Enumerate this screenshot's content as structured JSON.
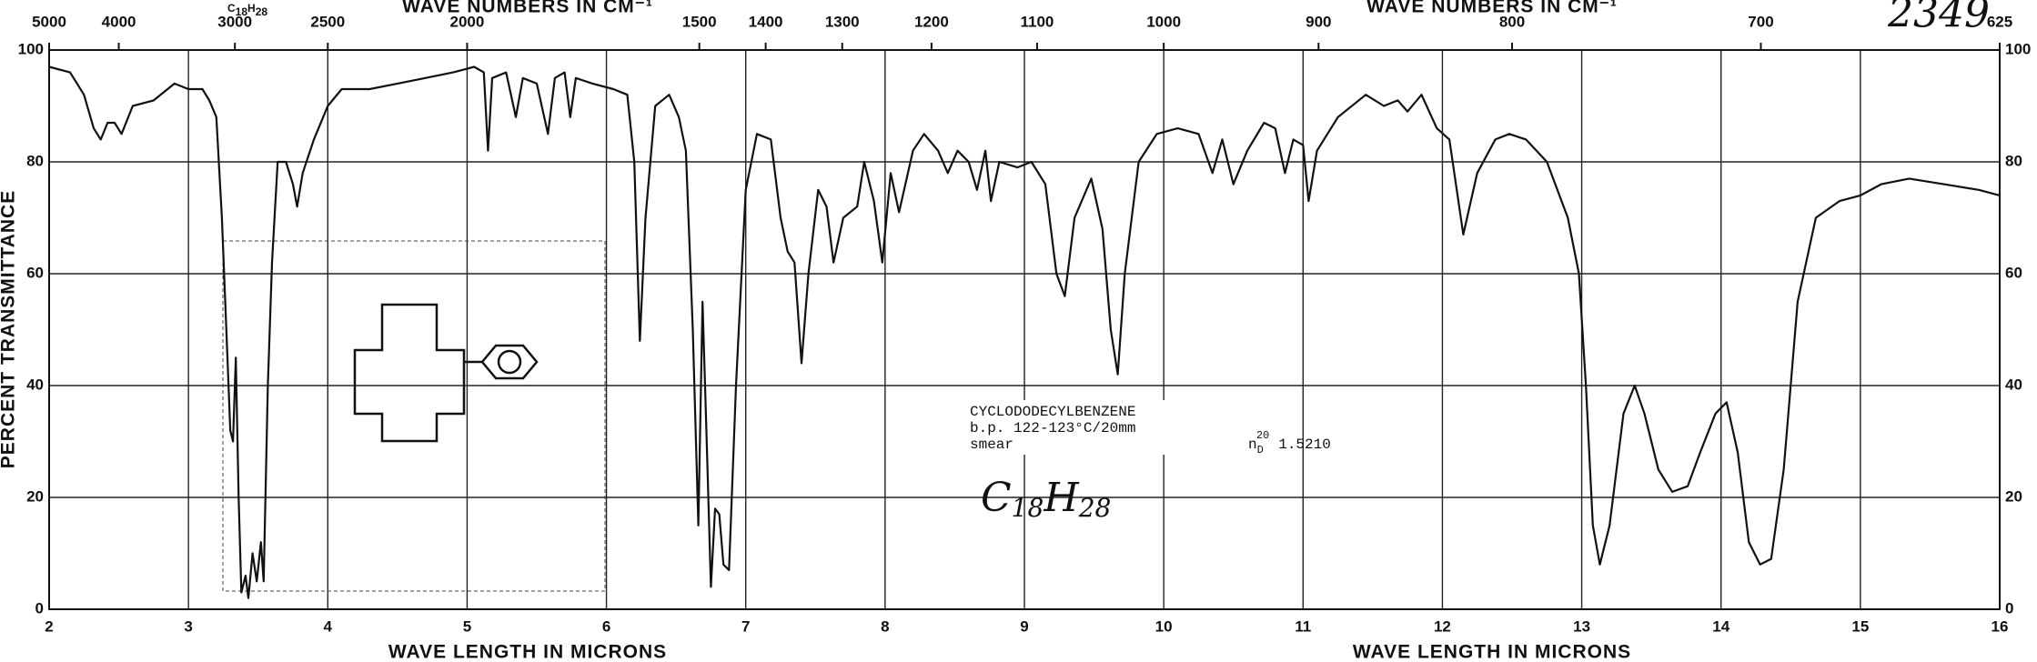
{
  "chart_data": {
    "type": "line",
    "spectrum_number": "2349",
    "x_label": "WAVE LENGTH IN MICRONS",
    "x2_label": "WAVE NUMBERS IN CM⁻¹",
    "y_label": "PERCENT TRANSMITTANCE",
    "xlim": [
      2,
      16
    ],
    "ylim": [
      0,
      100
    ],
    "xticks": [
      2,
      3,
      4,
      5,
      6,
      7,
      8,
      9,
      10,
      11,
      12,
      13,
      14,
      15,
      16
    ],
    "yticks": [
      0,
      20,
      40,
      60,
      80,
      100
    ],
    "x2ticks": [
      5000,
      4000,
      3000,
      2500,
      2000,
      1500,
      1400,
      1300,
      1200,
      1100,
      1000,
      900,
      800,
      700,
      625
    ],
    "grid": true,
    "header_formula": [
      "C",
      "18",
      "H",
      "28"
    ],
    "annotations": {
      "compound": "CYCLODODECYLBENZENE",
      "boiling_point": "b.p. 122-123°C/20mm",
      "method": "smear",
      "refractive_index": {
        "symbol": "n",
        "sub": "D",
        "sup": "20",
        "value": "1.5210"
      },
      "formula": [
        "C",
        "18",
        "H",
        "28"
      ]
    },
    "series": [
      {
        "color": "#111111",
        "x": [
          2.0,
          2.15,
          2.25,
          2.32,
          2.37,
          2.42,
          2.47,
          2.52,
          2.6,
          2.75,
          2.9,
          3.0,
          3.1,
          3.15,
          3.2,
          3.24,
          3.28,
          3.3,
          3.32,
          3.34,
          3.36,
          3.38,
          3.41,
          3.43,
          3.46,
          3.49,
          3.52,
          3.54,
          3.57,
          3.6,
          3.64,
          3.7,
          3.75,
          3.78,
          3.82,
          3.9,
          4.0,
          4.1,
          4.3,
          4.5,
          4.7,
          4.9,
          5.05,
          5.12,
          5.15,
          5.18,
          5.28,
          5.35,
          5.4,
          5.5,
          5.58,
          5.63,
          5.7,
          5.74,
          5.78,
          5.9,
          6.05,
          6.15,
          6.2,
          6.24,
          6.28,
          6.35,
          6.45,
          6.52,
          6.57,
          6.62,
          6.66,
          6.69,
          6.72,
          6.75,
          6.78,
          6.81,
          6.84,
          6.88,
          6.93,
          7.0,
          7.08,
          7.18,
          7.25,
          7.3,
          7.35,
          7.4,
          7.45,
          7.52,
          7.58,
          7.63,
          7.7,
          7.8,
          7.85,
          7.92,
          7.98,
          8.04,
          8.1,
          8.2,
          8.28,
          8.38,
          8.45,
          8.52,
          8.6,
          8.66,
          8.72,
          8.76,
          8.82,
          8.95,
          9.05,
          9.15,
          9.23,
          9.29,
          9.36,
          9.48,
          9.56,
          9.62,
          9.67,
          9.72,
          9.82,
          9.95,
          10.1,
          10.25,
          10.35,
          10.42,
          10.5,
          10.6,
          10.72,
          10.8,
          10.87,
          10.93,
          11.0,
          11.04,
          11.1,
          11.25,
          11.45,
          11.58,
          11.68,
          11.75,
          11.85,
          11.96,
          12.05,
          12.15,
          12.25,
          12.38,
          12.48,
          12.6,
          12.75,
          12.9,
          12.98,
          13.03,
          13.08,
          13.13,
          13.2,
          13.3,
          13.38,
          13.45,
          13.55,
          13.65,
          13.76,
          13.85,
          13.96,
          14.04,
          14.12,
          14.2,
          14.28,
          14.36,
          14.45,
          14.55,
          14.68,
          14.85,
          15.0,
          15.15,
          15.35,
          15.6,
          15.85,
          16.0
        ],
        "values": [
          97,
          96,
          92,
          86,
          84,
          87,
          87,
          85,
          90,
          91,
          94,
          93,
          93,
          91,
          88,
          70,
          45,
          32,
          30,
          45,
          20,
          3,
          6,
          2,
          10,
          5,
          12,
          5,
          40,
          62,
          80,
          80,
          76,
          72,
          78,
          84,
          90,
          93,
          93,
          94,
          95,
          96,
          97,
          96,
          82,
          95,
          96,
          88,
          95,
          94,
          85,
          95,
          96,
          88,
          95,
          94,
          93,
          92,
          80,
          48,
          70,
          90,
          92,
          88,
          82,
          50,
          15,
          55,
          30,
          4,
          18,
          17,
          8,
          7,
          40,
          75,
          85,
          84,
          70,
          64,
          62,
          44,
          60,
          75,
          72,
          62,
          70,
          72,
          80,
          73,
          62,
          78,
          71,
          82,
          85,
          82,
          78,
          82,
          80,
          75,
          82,
          73,
          80,
          79,
          80,
          76,
          60,
          56,
          70,
          77,
          68,
          50,
          42,
          60,
          80,
          85,
          86,
          85,
          78,
          84,
          76,
          82,
          87,
          86,
          78,
          84,
          83,
          73,
          82,
          88,
          92,
          90,
          91,
          89,
          92,
          86,
          84,
          67,
          78,
          84,
          85,
          84,
          80,
          70,
          60,
          40,
          15,
          8,
          15,
          35,
          40,
          35,
          25,
          21,
          22,
          28,
          35,
          37,
          28,
          12,
          8,
          9,
          25,
          55,
          70,
          73,
          74,
          76,
          77,
          76,
          75,
          74
        ]
      }
    ]
  }
}
